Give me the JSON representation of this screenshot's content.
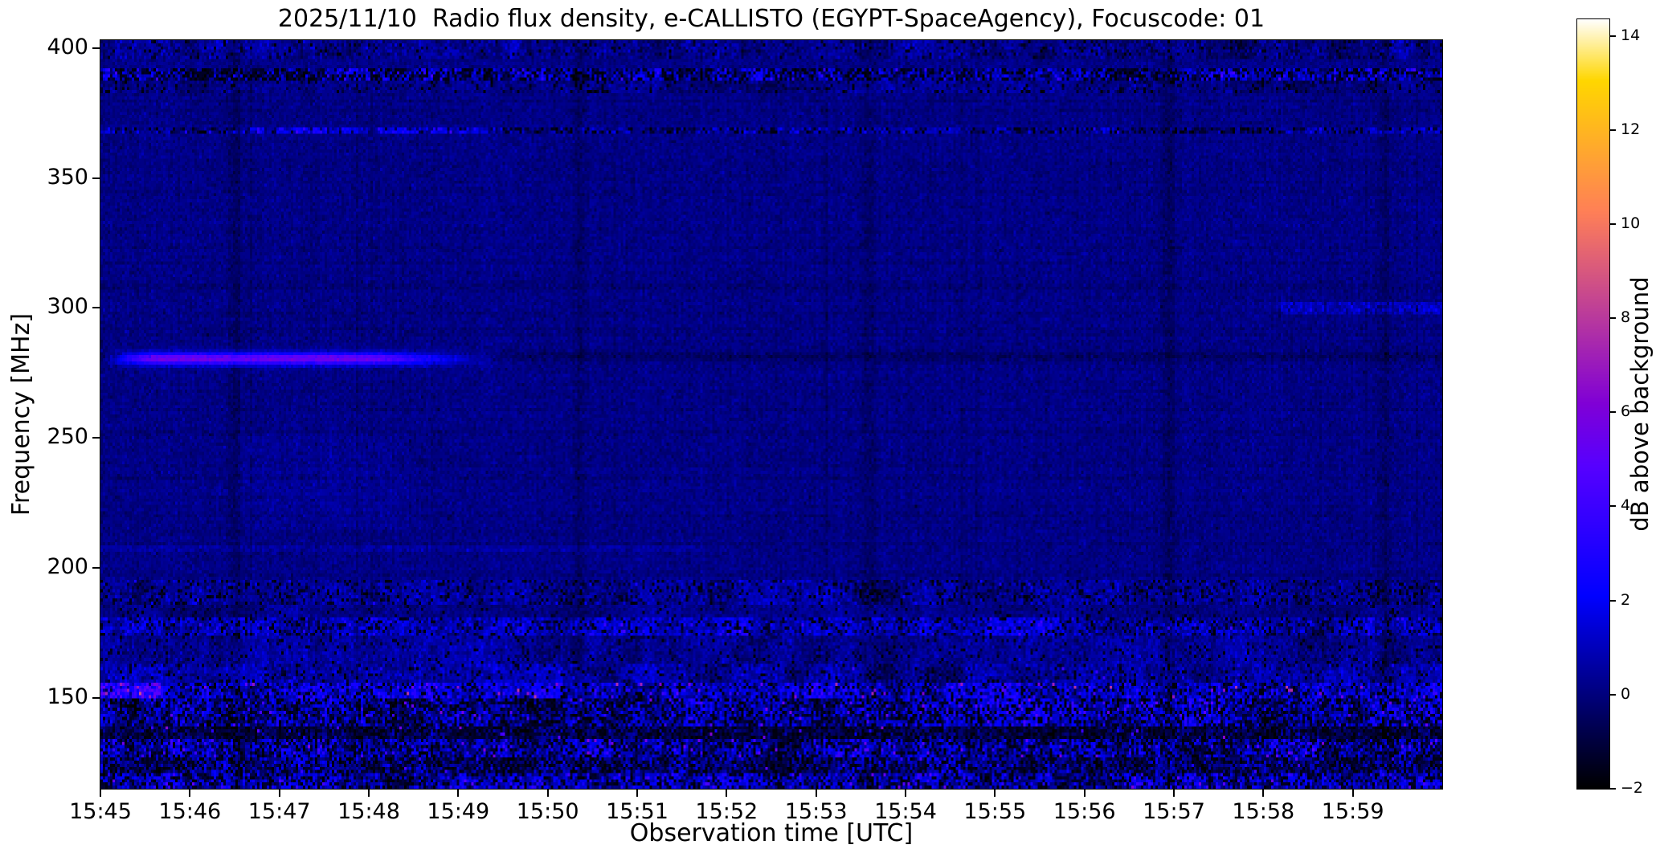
{
  "figure": {
    "background": "#ffffff",
    "frame_color": "#000000"
  },
  "chart_data": {
    "type": "heatmap",
    "title": "2025/11/10  Radio flux density, e-CALLISTO (EGYPT-SpaceAgency), Focuscode: 01",
    "xlabel": "Observation time [UTC]",
    "ylabel": "Frequency [MHz]",
    "x_axis": {
      "start_time": "15:45",
      "end_time": "16:00",
      "span_minutes": 15,
      "tick_labels": [
        "15:45",
        "15:46",
        "15:47",
        "15:48",
        "15:49",
        "15:50",
        "15:51",
        "15:52",
        "15:53",
        "15:54",
        "15:55",
        "15:56",
        "15:57",
        "15:58",
        "15:59"
      ]
    },
    "y_axis": {
      "min_mhz": 115,
      "max_mhz": 403,
      "tick_values": [
        400,
        350,
        300,
        250,
        200,
        150
      ],
      "tick_labels": [
        "400",
        "350",
        "300",
        "250",
        "200",
        "150"
      ]
    },
    "colorbar": {
      "label": "dB above background",
      "colormap": "gnuplot2",
      "vmin": -2,
      "vmax": 14.35,
      "tick_values": [
        -2,
        0,
        2,
        4,
        6,
        8,
        10,
        12,
        14
      ],
      "tick_labels": [
        "−2",
        "0",
        "2",
        "4",
        "6",
        "8",
        "10",
        "12",
        "14"
      ]
    },
    "background_level_db": 0.12,
    "noise_bands": [
      {
        "f_lo": 396,
        "f_hi": 403,
        "base": 0.2,
        "noise": 0.9,
        "dropout": 0.06,
        "sparkle": 0.0,
        "sparkle_max": 0
      },
      {
        "f_lo": 387.5,
        "f_hi": 392.5,
        "base": 0.5,
        "noise": 2.0,
        "dropout": 0.3,
        "sparkle": 0.02,
        "sparkle_max": 4
      },
      {
        "f_lo": 383,
        "f_hi": 387.5,
        "base": 0.1,
        "noise": 0.7,
        "dropout": 0.1,
        "sparkle": 0.0,
        "sparkle_max": 0
      },
      {
        "f_lo": 366.5,
        "f_hi": 369.5,
        "base": 0.3,
        "noise": 1.3,
        "dropout": 0.18,
        "sparkle": 0.01,
        "sparkle_max": 3.5
      },
      {
        "f_lo": 186,
        "f_hi": 196,
        "base": 0.25,
        "noise": 1.0,
        "dropout": 0.15,
        "sparkle": 0.005,
        "sparkle_max": 3
      },
      {
        "f_lo": 181,
        "f_hi": 186,
        "base": 0.15,
        "noise": 0.6,
        "dropout": 0.05,
        "sparkle": 0.0,
        "sparkle_max": 0
      },
      {
        "f_lo": 174,
        "f_hi": 181,
        "base": 0.9,
        "noise": 1.4,
        "dropout": 0.12,
        "sparkle": 0.01,
        "sparkle_max": 4
      },
      {
        "f_lo": 163,
        "f_hi": 174,
        "base": 0.35,
        "noise": 0.8,
        "dropout": 0.06,
        "sparkle": 0.0,
        "sparkle_max": 0
      },
      {
        "f_lo": 156,
        "f_hi": 163,
        "base": 0.5,
        "noise": 1.0,
        "dropout": 0.08,
        "sparkle": 0.005,
        "sparkle_max": 4
      },
      {
        "f_lo": 149.5,
        "f_hi": 156,
        "base": 1.3,
        "noise": 1.8,
        "dropout": 0.15,
        "sparkle": 0.03,
        "sparkle_max": 8
      },
      {
        "f_lo": 139,
        "f_hi": 149.5,
        "base": 0.7,
        "noise": 2.0,
        "dropout": 0.25,
        "sparkle": 0.02,
        "sparkle_max": 6
      },
      {
        "f_lo": 134.5,
        "f_hi": 139,
        "base": -0.6,
        "noise": 1.2,
        "dropout": 0.35,
        "sparkle": 0.012,
        "sparkle_max": 6.5
      },
      {
        "f_lo": 127,
        "f_hi": 134.5,
        "base": 0.8,
        "noise": 2.0,
        "dropout": 0.22,
        "sparkle": 0.025,
        "sparkle_max": 6.5
      },
      {
        "f_lo": 121,
        "f_hi": 127,
        "base": 0.3,
        "noise": 1.6,
        "dropout": 0.3,
        "sparkle": 0.01,
        "sparkle_max": 5
      },
      {
        "f_lo": 115,
        "f_hi": 121,
        "base": 0.9,
        "noise": 2.0,
        "dropout": 0.2,
        "sparkle": 0.02,
        "sparkle_max": 6
      }
    ],
    "events": [
      {
        "kind": "streak",
        "freq_mhz": 280.5,
        "sigma_mhz": 1.6,
        "t0": 0.0,
        "t1": 0.31,
        "peak_db": 6.0
      },
      {
        "kind": "dark_line",
        "freq_mhz": 281.2,
        "sigma_mhz": 1.3,
        "depth_db": 0.55
      },
      {
        "kind": "dark_line",
        "freq_mhz": 308,
        "sigma_mhz": 1.0,
        "depth_db": 0.25
      },
      {
        "kind": "patch",
        "f_lo": 297.5,
        "f_hi": 302.5,
        "t0": 0.88,
        "t1": 1.0,
        "add_db": 0.9,
        "noise_db": 0.5
      },
      {
        "kind": "patch",
        "f_lo": 367,
        "f_hi": 369,
        "t0": 0.13,
        "t1": 0.3,
        "add_db": 1.2,
        "noise_db": 0.4
      },
      {
        "kind": "patch",
        "f_lo": 206,
        "f_hi": 208.5,
        "t0": 0.0,
        "t1": 0.45,
        "add_db": 0.4,
        "noise_db": 0.2
      },
      {
        "kind": "patch",
        "f_lo": 215,
        "f_hi": 252,
        "t0": 0.1,
        "t1": 0.23,
        "add_db": 0.22,
        "noise_db": 0.12
      },
      {
        "kind": "patch",
        "f_lo": 150,
        "f_hi": 155.5,
        "t0": 0.0,
        "t1": 0.045,
        "add_db": 2.5,
        "noise_db": 1.2
      }
    ],
    "dark_columns": [
      {
        "t": 0.1,
        "depth_db": 0.5
      },
      {
        "t": 0.357,
        "depth_db": 0.45
      },
      {
        "t": 0.573,
        "depth_db": 0.45
      },
      {
        "t": 0.797,
        "depth_db": 0.55
      },
      {
        "t": 0.957,
        "depth_db": 0.5
      }
    ]
  }
}
